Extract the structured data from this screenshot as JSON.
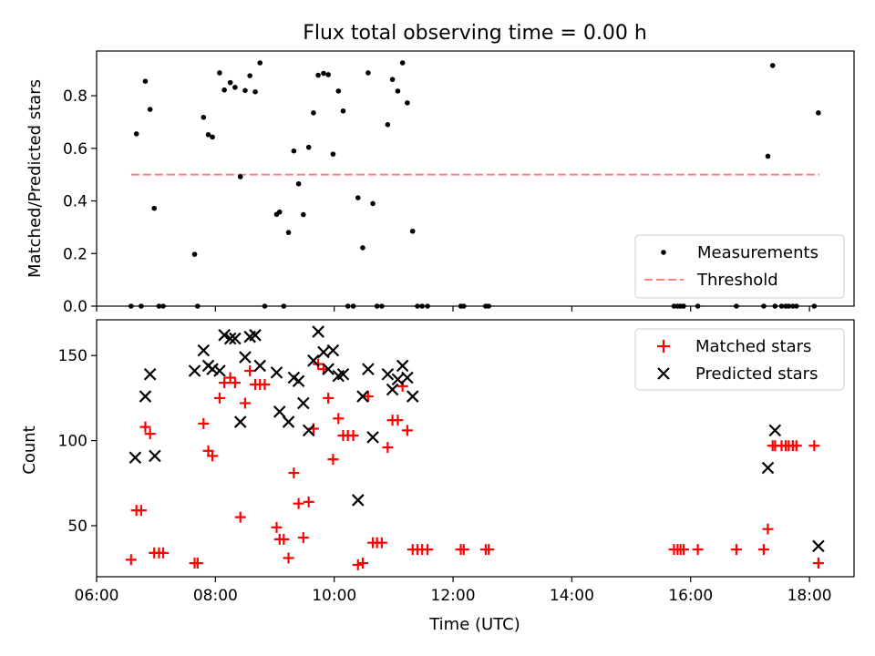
{
  "figure": {
    "title": "Flux total observing time = 0.00 h",
    "xlabel": "Time (UTC)",
    "xticks": [
      "06:00",
      "08:00",
      "10:00",
      "12:00",
      "14:00",
      "16:00",
      "18:00"
    ]
  },
  "chart_data": [
    {
      "type": "scatter",
      "title": "Flux total observing time = 0.00 h",
      "ylabel": "Matched/Predicted stars",
      "xlim": [
        6.0,
        18.75
      ],
      "ylim": [
        0.0,
        0.97
      ],
      "yticks": [
        0.0,
        0.2,
        0.4,
        0.6,
        0.8
      ],
      "legend_position": "lower-right",
      "threshold": {
        "name": "Threshold",
        "y": 0.5,
        "x_range": [
          6.58,
          18.17
        ],
        "color": "#ff7f7f",
        "style": "dashed"
      },
      "series": [
        {
          "name": "Measurements",
          "color": "#000000",
          "marker": "dot",
          "x": [
            6.58,
            6.67,
            6.75,
            6.82,
            6.9,
            6.97,
            7.05,
            7.12,
            7.65,
            7.7,
            7.8,
            7.88,
            7.95,
            8.07,
            8.15,
            8.25,
            8.33,
            8.42,
            8.5,
            8.58,
            8.67,
            8.75,
            8.83,
            9.03,
            9.08,
            9.15,
            9.23,
            9.32,
            9.4,
            9.48,
            9.57,
            9.65,
            9.73,
            9.82,
            9.9,
            9.98,
            10.07,
            10.15,
            10.23,
            10.32,
            10.4,
            10.48,
            10.57,
            10.65,
            10.72,
            10.8,
            10.9,
            10.98,
            11.07,
            11.15,
            11.23,
            11.32,
            11.4,
            11.48,
            11.57,
            12.13,
            12.18,
            12.55,
            12.6,
            15.72,
            15.78,
            15.83,
            15.88,
            16.12,
            16.77,
            17.23,
            17.3,
            17.38,
            17.42,
            17.53,
            17.6,
            17.65,
            17.72,
            17.78,
            18.08,
            18.15
          ],
          "y": [
            0.0,
            0.655,
            0.0,
            0.855,
            0.748,
            0.372,
            0.0,
            0.0,
            0.197,
            0.0,
            0.718,
            0.652,
            0.643,
            0.887,
            0.822,
            0.85,
            0.832,
            0.492,
            0.82,
            0.876,
            0.815,
            0.925,
            0.0,
            0.349,
            0.358,
            0.0,
            0.28,
            0.59,
            0.465,
            0.348,
            0.604,
            0.735,
            0.878,
            0.885,
            0.88,
            0.578,
            0.818,
            0.742,
            0.0,
            0.0,
            0.412,
            0.222,
            0.887,
            0.39,
            0.0,
            0.0,
            0.69,
            0.862,
            0.818,
            0.925,
            0.773,
            0.285,
            0.0,
            0.0,
            0.0,
            0.0,
            0.0,
            0.0,
            0.0,
            0.0,
            0.0,
            0.0,
            0.0,
            0.0,
            0.0,
            0.0,
            0.57,
            0.915,
            0.0,
            0.0,
            0.0,
            0.0,
            0.0,
            0.0,
            0.0,
            0.735
          ]
        }
      ]
    },
    {
      "type": "scatter",
      "ylabel": "Count",
      "xlabel": "Time (UTC)",
      "xlim": [
        6.0,
        18.75
      ],
      "ylim": [
        20,
        171
      ],
      "yticks": [
        50,
        100,
        150
      ],
      "legend_position": "upper-right",
      "series": [
        {
          "name": "Matched stars",
          "color": "#ff0000",
          "marker": "plus",
          "x": [
            6.58,
            6.67,
            6.75,
            6.82,
            6.9,
            6.97,
            7.05,
            7.12,
            7.65,
            7.7,
            7.8,
            7.88,
            7.95,
            8.07,
            8.15,
            8.25,
            8.33,
            8.42,
            8.5,
            8.58,
            8.67,
            8.75,
            8.83,
            9.03,
            9.08,
            9.15,
            9.23,
            9.32,
            9.4,
            9.48,
            9.57,
            9.65,
            9.73,
            9.82,
            9.9,
            9.98,
            10.07,
            10.15,
            10.23,
            10.32,
            10.4,
            10.48,
            10.57,
            10.65,
            10.72,
            10.8,
            10.9,
            10.98,
            11.07,
            11.15,
            11.23,
            11.32,
            11.4,
            11.48,
            11.57,
            12.13,
            12.18,
            12.55,
            12.6,
            15.72,
            15.78,
            15.83,
            15.88,
            16.12,
            16.77,
            17.23,
            17.3,
            17.38,
            17.42,
            17.53,
            17.6,
            17.65,
            17.72,
            17.78,
            18.08,
            18.15
          ],
          "y": [
            30,
            59,
            59,
            108,
            104,
            34,
            34,
            34,
            28,
            28,
            110,
            94,
            91,
            125,
            134,
            137,
            134,
            55,
            122,
            141,
            133,
            133,
            133,
            49,
            42,
            42,
            31,
            81,
            63,
            43,
            64,
            107,
            145,
            142,
            125,
            89,
            113,
            103,
            103,
            103,
            27,
            28,
            126,
            40,
            40,
            40,
            96,
            112,
            112,
            132,
            106,
            36,
            36,
            36,
            36,
            36,
            36,
            36,
            36,
            36,
            36,
            36,
            36,
            36,
            36,
            36,
            48,
            97,
            97,
            97,
            97,
            97,
            97,
            97,
            97,
            28
          ]
        },
        {
          "name": "Predicted stars",
          "color": "#000000",
          "marker": "x",
          "x": [
            6.65,
            6.82,
            6.9,
            6.98,
            7.65,
            7.8,
            7.88,
            7.95,
            8.07,
            8.15,
            8.25,
            8.33,
            8.42,
            8.5,
            8.58,
            8.67,
            8.75,
            9.03,
            9.08,
            9.23,
            9.32,
            9.4,
            9.48,
            9.57,
            9.65,
            9.73,
            9.82,
            9.9,
            9.98,
            10.07,
            10.15,
            10.4,
            10.48,
            10.57,
            10.65,
            10.9,
            10.98,
            11.07,
            11.15,
            11.23,
            11.32,
            17.3,
            17.42,
            18.15
          ],
          "y": [
            90,
            126,
            139,
            91,
            141,
            153,
            144,
            142,
            141,
            162,
            160,
            160,
            111,
            149,
            161,
            162,
            144,
            140,
            117,
            111,
            137,
            135,
            122,
            106,
            147,
            164,
            152,
            142,
            153,
            138,
            139,
            65,
            126,
            142,
            102,
            139,
            130,
            136,
            144,
            137,
            126,
            84,
            106,
            38
          ]
        }
      ]
    }
  ]
}
